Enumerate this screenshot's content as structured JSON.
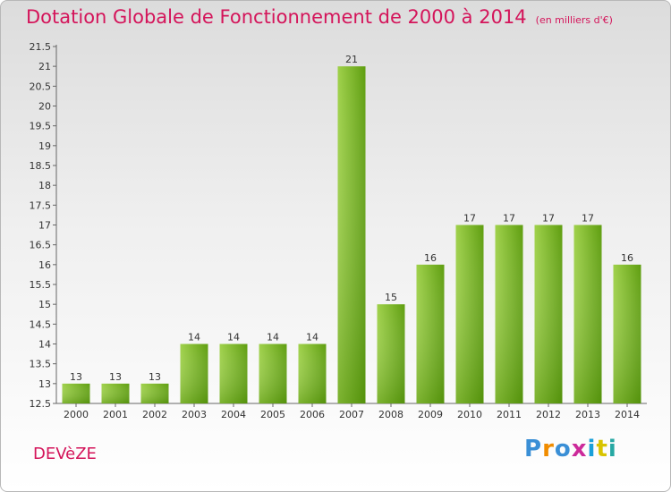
{
  "title": "Dotation Globale de Fonctionnement de 2000 à 2014",
  "unit_note": "(en milliers d'€)",
  "commune": "DEVèZE",
  "logo": {
    "text": "Proxiti",
    "letter_colors": [
      "#3a8fd6",
      "#f08c00",
      "#3a8fd6",
      "#cc2a9a",
      "#1aa0d9",
      "#d8c400",
      "#27a8a3"
    ]
  },
  "colors": {
    "title": "#d4145a",
    "bar_light": "#9fd14a",
    "bar_dark": "#5f9e10"
  },
  "chart_data": {
    "type": "bar",
    "categories": [
      "2000",
      "2001",
      "2002",
      "2003",
      "2004",
      "2005",
      "2006",
      "2007",
      "2008",
      "2009",
      "2010",
      "2011",
      "2012",
      "2013",
      "2014"
    ],
    "values": [
      13,
      13,
      13,
      14,
      14,
      14,
      14,
      21,
      15,
      16,
      17,
      17,
      17,
      17,
      16
    ],
    "data_labels": [
      "13",
      "13",
      "13",
      "14",
      "14",
      "14",
      "14",
      "21",
      "15",
      "16",
      "17",
      "17",
      "17",
      "17",
      "16"
    ],
    "ylim": [
      12.5,
      21.5
    ],
    "yticks": [
      "12.5",
      "13",
      "13.5",
      "14",
      "14.5",
      "15",
      "15.5",
      "16",
      "16.5",
      "17",
      "17.5",
      "18",
      "18.5",
      "19",
      "19.5",
      "20",
      "20.5",
      "21",
      "21.5"
    ],
    "grid": false,
    "xlabel": "",
    "ylabel": ""
  }
}
